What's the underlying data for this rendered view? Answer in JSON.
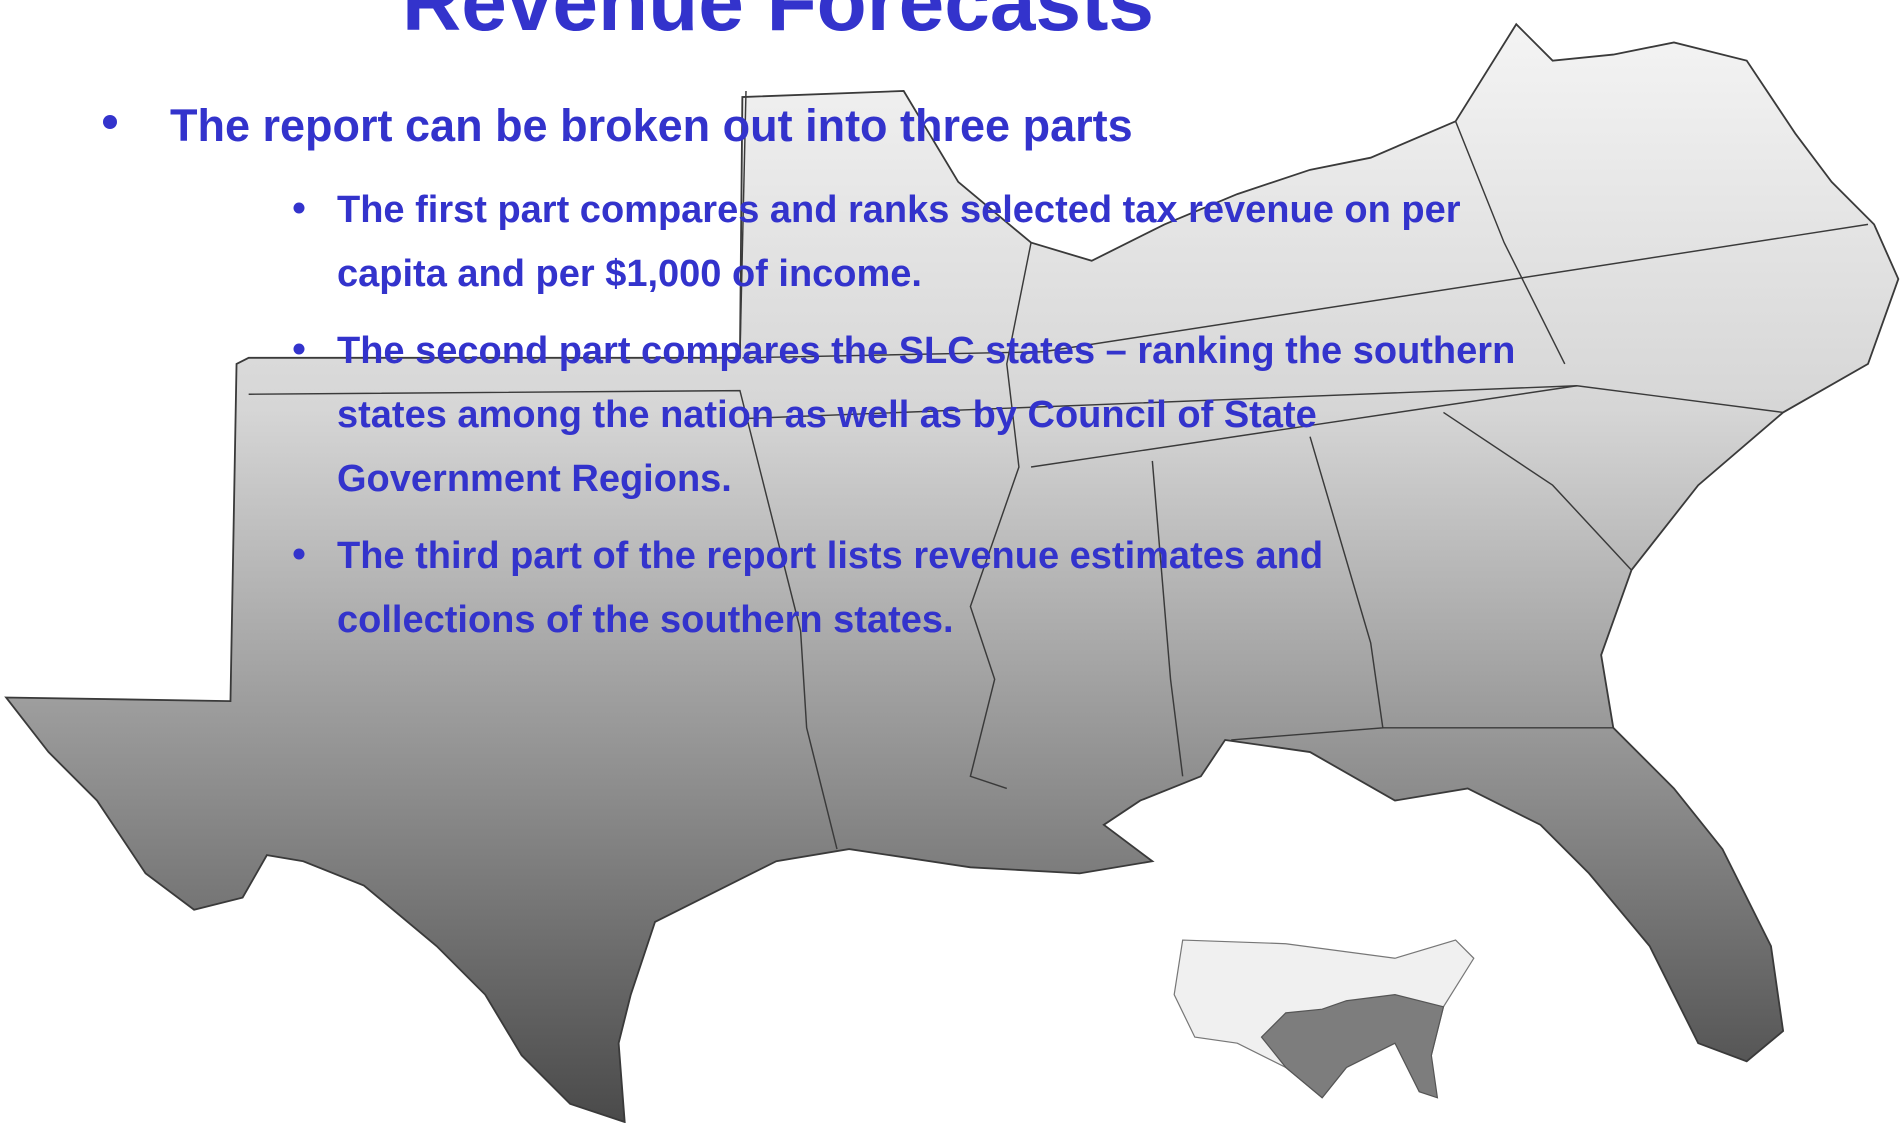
{
  "slide": {
    "title": "Revenue Forecasts",
    "bullet": "The report can be broken out into three parts",
    "sub_bullets": [
      [
        "The first part compares and ranks selected tax revenue on per",
        "capita and per $1,000 of income."
      ],
      [
        "The second part compares the SLC states – ranking the southern",
        "states among the nation as well as by Council of State",
        "Government Regions."
      ],
      [
        "The third part of the report lists revenue estimates and",
        "collections of the southern states."
      ]
    ]
  }
}
